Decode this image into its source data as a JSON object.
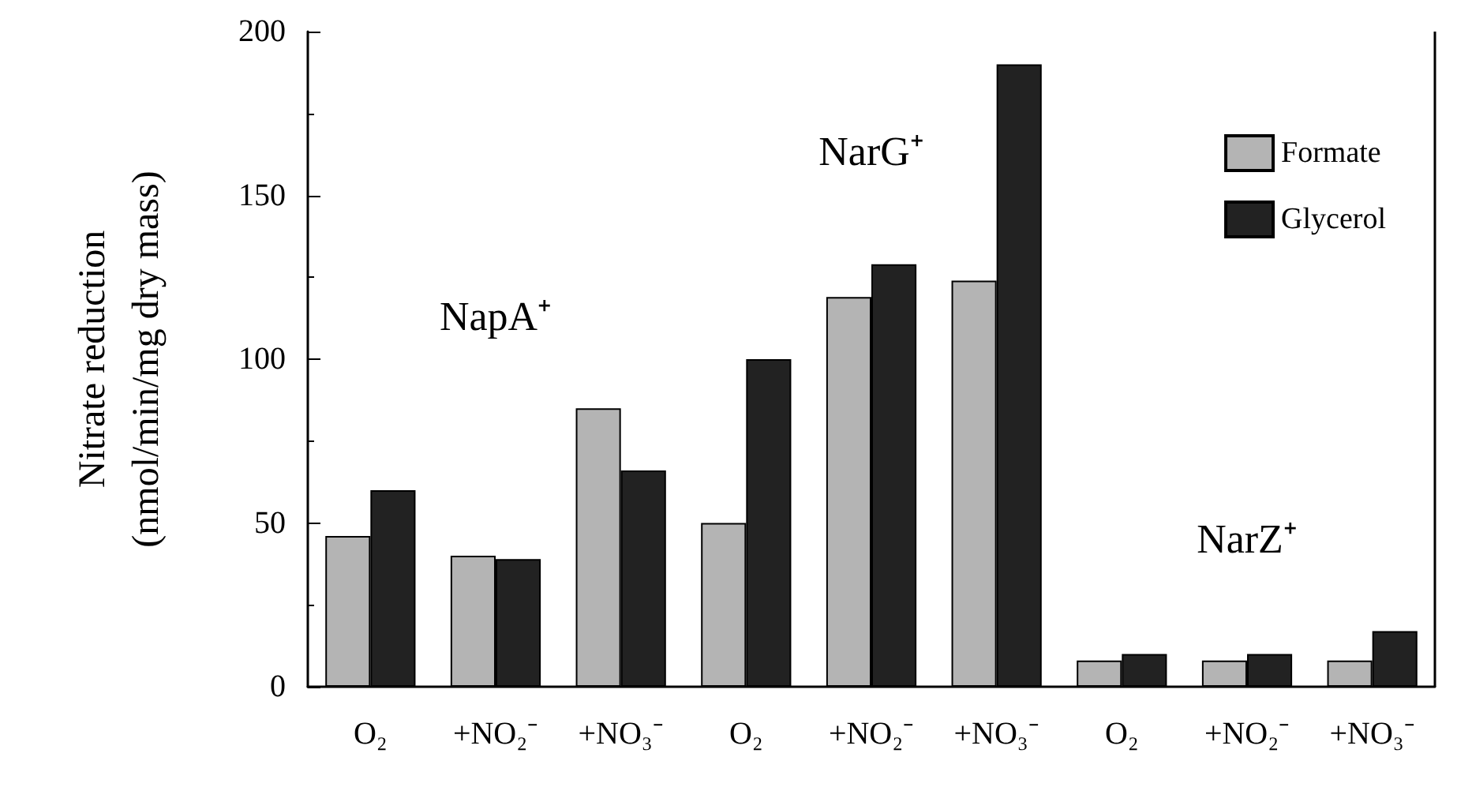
{
  "chart_data": {
    "type": "bar",
    "ylabel": "Nitrate reduction\n(nmol/min/mg dry mass)",
    "categories": [
      "O₂",
      "+NO₂⁻",
      "+NO₃⁻",
      "O₂",
      "+NO₂⁻",
      "+NO₃⁻",
      "O₂",
      "+NO₂⁻",
      "+NO₃⁻"
    ],
    "series": [
      {
        "name": "Formate",
        "color": "#b4b4b4",
        "values": [
          46,
          40,
          85,
          50,
          119,
          124,
          8,
          8,
          8
        ]
      },
      {
        "name": "Glycerol",
        "color": "#222222",
        "values": [
          60,
          39,
          66,
          100,
          129,
          190,
          10,
          10,
          17
        ]
      }
    ],
    "annotations": [
      "NapA⁺",
      "NarG⁺",
      "NarZ⁺"
    ],
    "ylim": [
      0,
      200
    ],
    "yticks": [
      0,
      50,
      100,
      150,
      200
    ],
    "grid": false,
    "legend": "top right"
  }
}
